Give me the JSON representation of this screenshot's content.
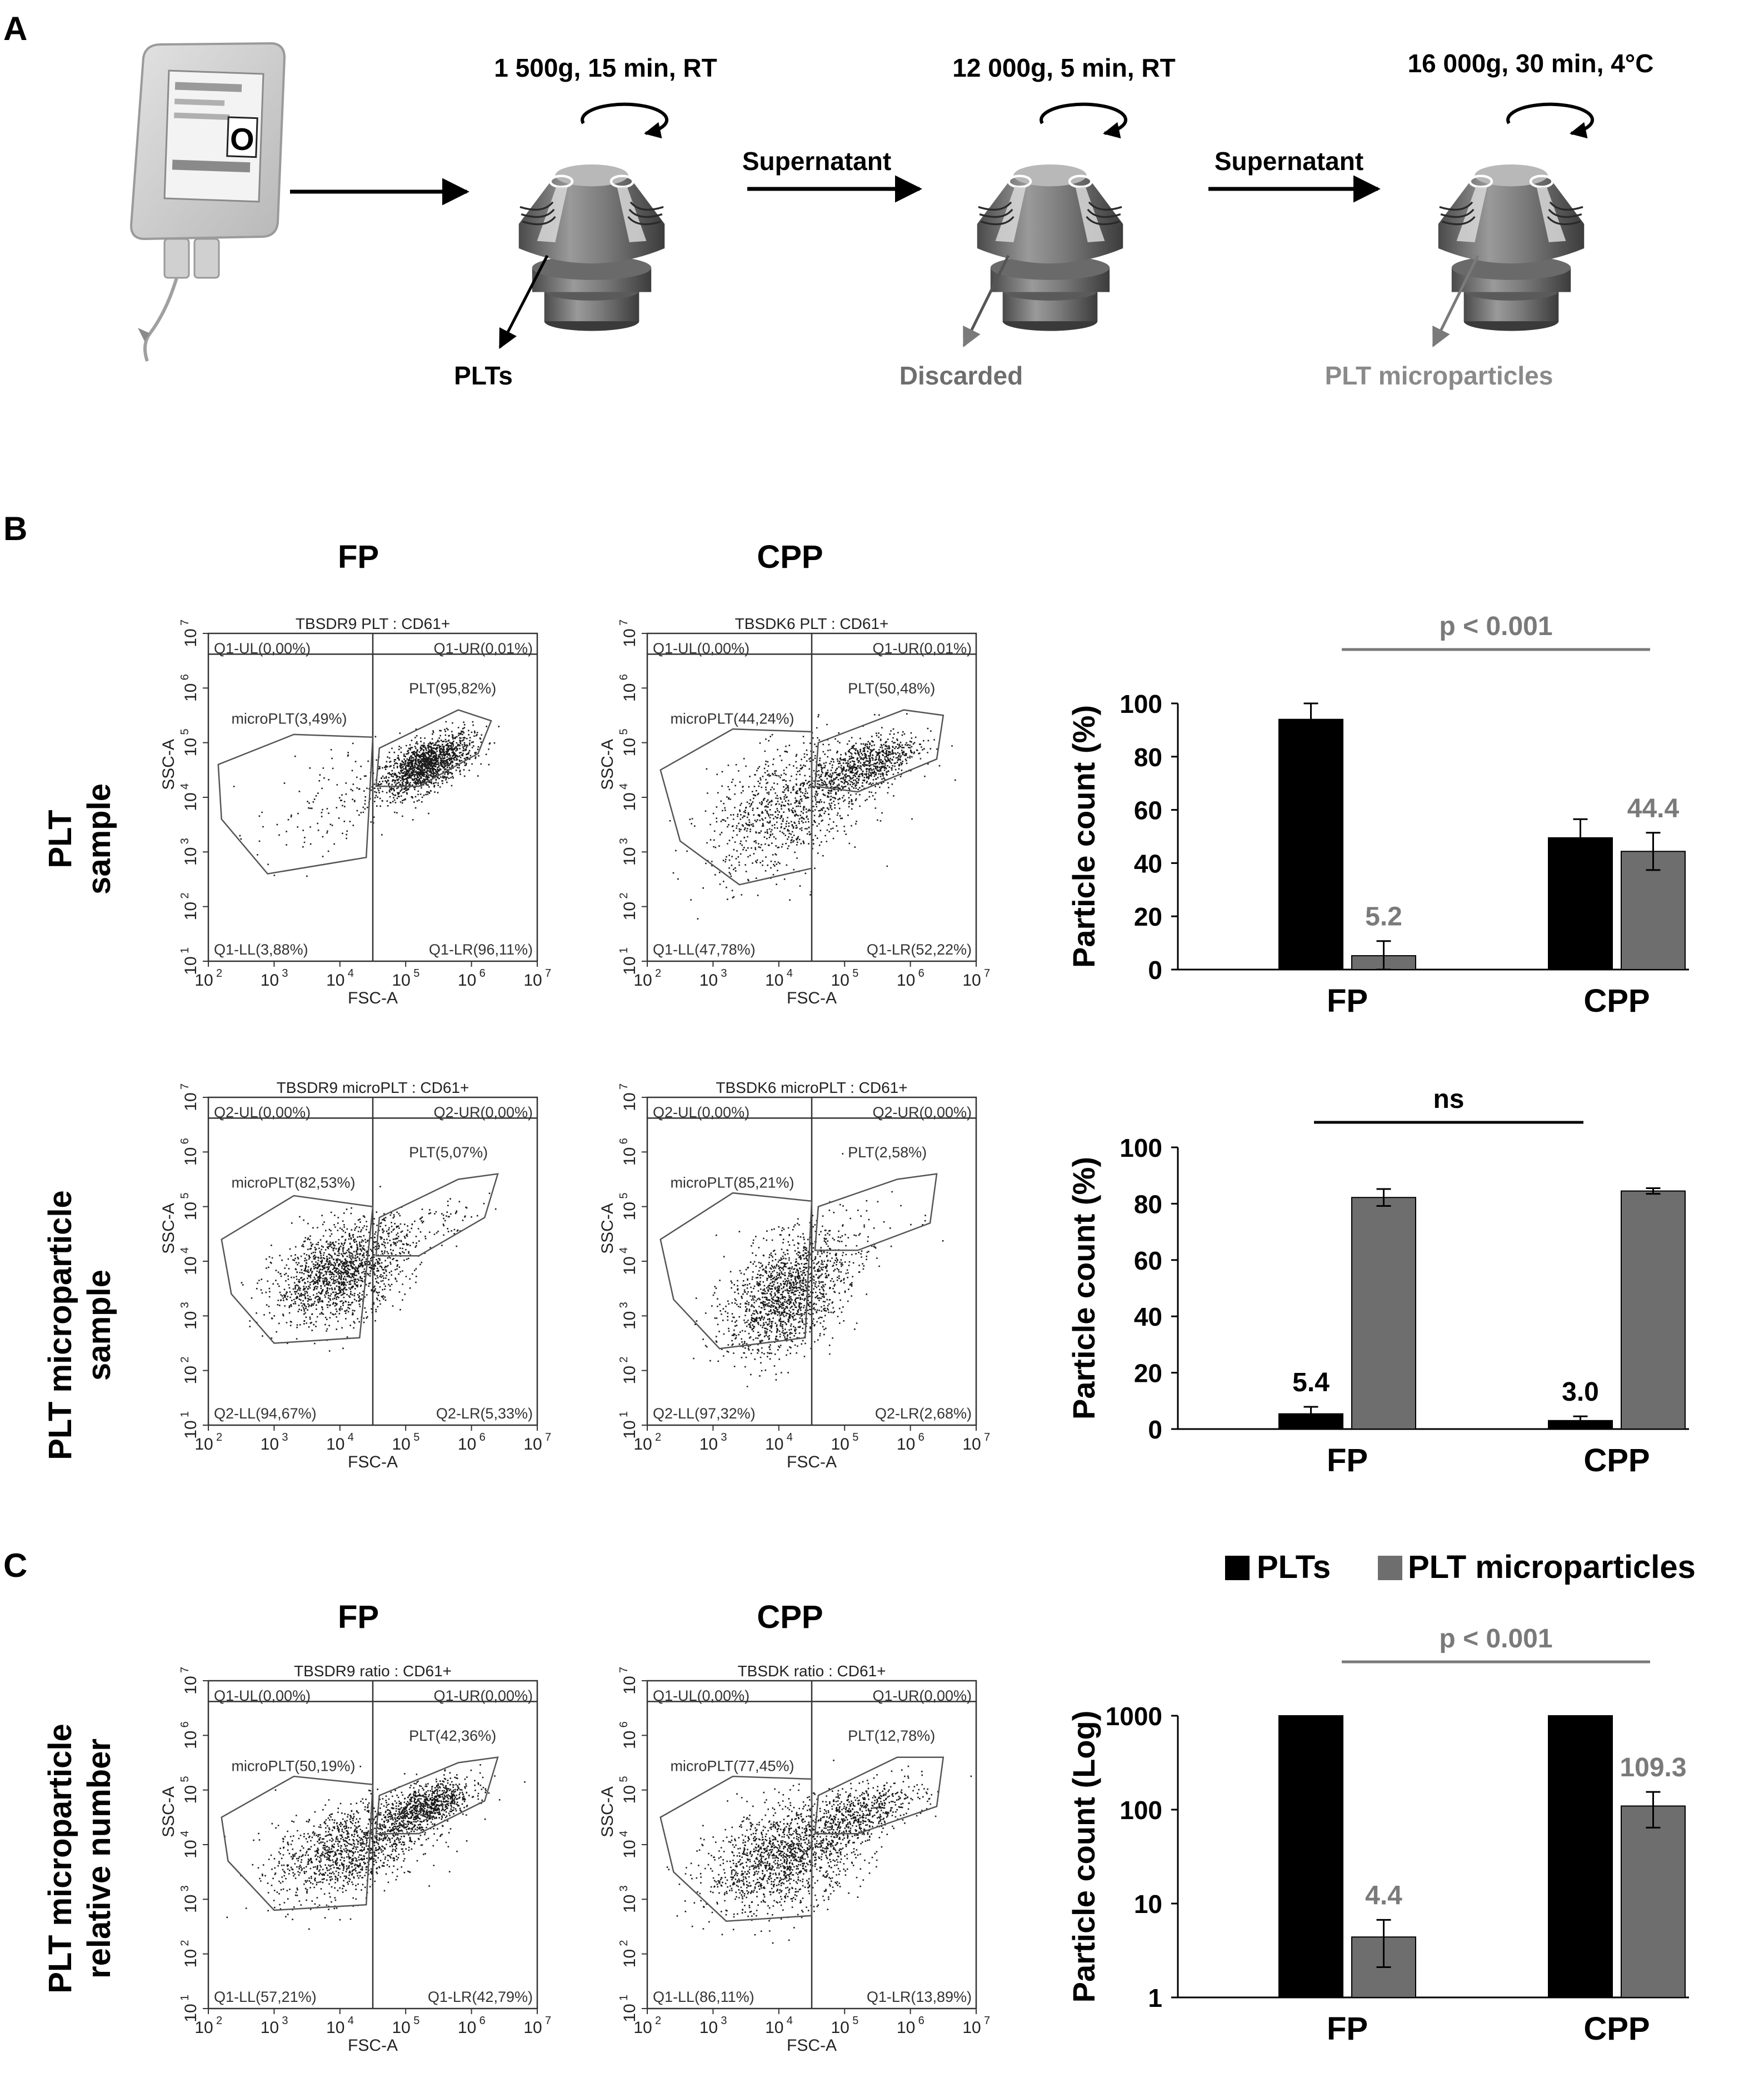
{
  "panel_labels": {
    "a": "A",
    "b": "B",
    "c": "C"
  },
  "workflow": {
    "bag_label": "O",
    "steps": [
      {
        "condition": "1 500g, 15 min, RT",
        "product": "PLTs"
      },
      {
        "condition": "12 000g, 5 min, RT",
        "product": "Discarded"
      },
      {
        "condition": "16 000g, 30 min, 4°C",
        "product": "PLT microparticles"
      }
    ],
    "arrow_label": "Supernatant"
  },
  "column_headers": {
    "fp": "FP",
    "cpp": "CPP"
  },
  "row_labels": {
    "plt": [
      "PLT",
      "sample"
    ],
    "micro": [
      "PLT microparticle",
      "sample"
    ],
    "ratio": [
      "PLT microparticle",
      "relative number"
    ]
  },
  "flow_plots": [
    {
      "title": "TBSDR9 PLT : CD61+",
      "ul": "Q1-UL(0,00%)",
      "ur": "Q1-UR(0,01%)",
      "ll": "Q1-LL(3,88%)",
      "lr": "Q1-LR(96,11%)",
      "gate_plt": "PLT(95,82%)",
      "gate_micro": "microPLT(3,49%)"
    },
    {
      "title": "TBSDK6 PLT : CD61+",
      "ul": "Q1-UL(0,00%)",
      "ur": "Q1-UR(0,01%)",
      "ll": "Q1-LL(47,78%)",
      "lr": "Q1-LR(52,22%)",
      "gate_plt": "PLT(50,48%)",
      "gate_micro": "microPLT(44,24%)"
    },
    {
      "title": "TBSDR9 microPLT : CD61+",
      "ul": "Q2-UL(0,00%)",
      "ur": "Q2-UR(0,00%)",
      "ll": "Q2-LL(94,67%)",
      "lr": "Q2-LR(5,33%)",
      "gate_plt": "PLT(5,07%)",
      "gate_micro": "microPLT(82,53%)"
    },
    {
      "title": "TBSDK6 microPLT : CD61+",
      "ul": "Q2-UL(0,00%)",
      "ur": "Q2-UR(0,00%)",
      "ll": "Q2-LL(97,32%)",
      "lr": "Q2-LR(2,68%)",
      "gate_plt": "PLT(2,58%)",
      "gate_micro": "microPLT(85,21%)"
    },
    {
      "title": "TBSDR9 ratio : CD61+",
      "ul": "Q1-UL(0,00%)",
      "ur": "Q1-UR(0,00%)",
      "ll": "Q1-LL(57,21%)",
      "lr": "Q1-LR(42,79%)",
      "gate_plt": "PLT(42,36%)",
      "gate_micro": "microPLT(50,19%)"
    },
    {
      "title": "TBSDK ratio : CD61+",
      "ul": "Q1-UL(0,00%)",
      "ur": "Q1-UR(0,00%)",
      "ll": "Q1-LL(86,11%)",
      "lr": "Q1-LR(13,89%)",
      "gate_plt": "PLT(12,78%)",
      "gate_micro": "microPLT(77,45%)"
    }
  ],
  "flow_axes": {
    "x_label": "FSC-A",
    "y_label": "SSC-A",
    "tick_base": "10",
    "tick_exponents": [
      "1",
      "2",
      "3",
      "4",
      "5",
      "6",
      "7"
    ],
    "x_tick_exponents": [
      "2",
      "3",
      "4",
      "5",
      "6",
      "7"
    ]
  },
  "legend": {
    "plts": "PLTs",
    "micro": "PLT microparticles"
  },
  "colors": {
    "plts": "#000000",
    "micro": "#6e6e6e",
    "gray_text": "#7a7a7a"
  },
  "chart_data": [
    {
      "type": "bar",
      "categories": [
        "FP",
        "CPP"
      ],
      "series": [
        {
          "name": "PLTs",
          "values": [
            94,
            49.5
          ],
          "errors": [
            6,
            7
          ]
        },
        {
          "name": "PLT microparticles",
          "values": [
            5.2,
            44.4
          ],
          "errors": [
            5.5,
            7
          ]
        }
      ],
      "ylabel": "Particle count (%)",
      "ylim": [
        0,
        100
      ],
      "yticks": [
        "0",
        "20",
        "40",
        "60",
        "80",
        "100"
      ],
      "data_labels": [
        "5.2",
        "44.4"
      ],
      "significance": "p < 0.001"
    },
    {
      "type": "bar",
      "categories": [
        "FP",
        "CPP"
      ],
      "series": [
        {
          "name": "PLTs",
          "values": [
            5.4,
            3.0
          ],
          "errors": [
            2.5,
            1.5
          ]
        },
        {
          "name": "PLT microparticles",
          "values": [
            82.2,
            84.5
          ],
          "errors": [
            3,
            1
          ]
        }
      ],
      "ylabel": "Particle count  (%)",
      "ylim": [
        0,
        100
      ],
      "yticks": [
        "0",
        "20",
        "40",
        "60",
        "80",
        "100"
      ],
      "data_labels": [
        "5.4",
        "3.0"
      ],
      "significance": "ns"
    },
    {
      "type": "bar",
      "categories": [
        "FP",
        "CPP"
      ],
      "series": [
        {
          "name": "PLTs",
          "values": [
            1000,
            1000
          ],
          "errors": [
            0,
            0
          ]
        },
        {
          "name": "PLT microparticles",
          "values": [
            4.4,
            109.3
          ],
          "errors": [
            2.3,
            45
          ]
        }
      ],
      "ylabel": "Particle count (Log)",
      "log_scale": true,
      "ylim": [
        1,
        1000
      ],
      "yticks": [
        "1",
        "10",
        "100",
        "1000"
      ],
      "data_labels": [
        "4.4",
        "109.3"
      ],
      "significance": "p < 0.001"
    }
  ]
}
